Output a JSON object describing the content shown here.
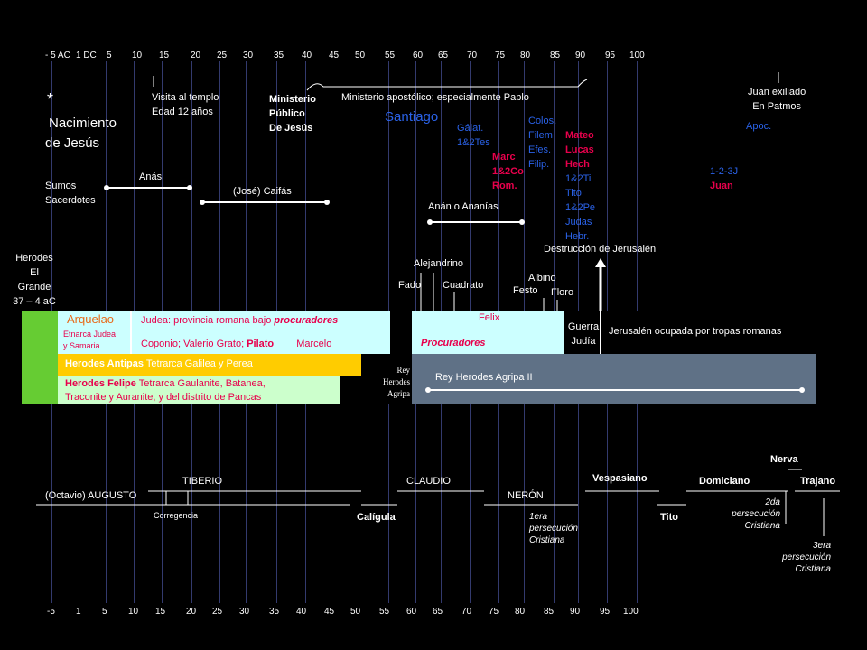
{
  "axis": {
    "top_ticks": [
      "- 5 AC",
      "1 DC",
      "5",
      "10",
      "15",
      "20",
      "25",
      "30",
      "35",
      "40",
      "45",
      "50",
      "55",
      "60",
      "65",
      "70",
      "75",
      "80",
      "85",
      "90",
      "95",
      "100"
    ],
    "bottom_ticks": [
      "-5",
      "1",
      "5",
      "10",
      "15",
      "20",
      "25",
      "30",
      "35",
      "40",
      "45",
      "50",
      "55",
      "60",
      "65",
      "70",
      "75",
      "80",
      "85",
      "90",
      "95",
      "100"
    ]
  },
  "events": {
    "star": "*",
    "birth": [
      "Nacimiento",
      "de Jesús"
    ],
    "temple": [
      "Visita al templo",
      "Edad 12 años"
    ],
    "ministry": [
      "Ministerio",
      "Público",
      "De Jesús"
    ],
    "apostolic": "Ministerio apostólico; especialmente Pablo",
    "santiago": "Santiago",
    "patmos": [
      "Juan exiliado",
      "En Patmos"
    ],
    "destruction": "Destrucción de Jerusalén"
  },
  "writings": {
    "galat": [
      "Gálat.",
      "1&2Tes"
    ],
    "marc": [
      "Marc",
      "1&2Co",
      "Rom."
    ],
    "colos": [
      "Colos.",
      "Filem",
      "Efes.",
      "Filip."
    ],
    "mateo": [
      "Mateo",
      "Lucas",
      "Hech",
      "1&2Ti",
      "Tito",
      "1&2Pe",
      "Judas",
      "Hebr."
    ],
    "juan": [
      "1-2-3J",
      "Juan"
    ],
    "apoc": "Apoc."
  },
  "priests": {
    "label": [
      "Sumos",
      "Sacerdotes"
    ],
    "anas": "Anás",
    "caifas": "(José) Caifás",
    "anan": "Anán o Ananías"
  },
  "herod": {
    "label": [
      "Herodes",
      "El",
      "Grande",
      "37 – 4 aC"
    ]
  },
  "procurators_names": {
    "alejandrino": "Alejandrino",
    "fado": "Fado",
    "cuadrato": "Cuadrato",
    "albino": "Albino",
    "festo": "Festo",
    "floro": "Floro"
  },
  "blocks": {
    "arquelao": "Arquelao",
    "arquelao_sub": [
      "Etnarca Judea",
      "y Samaria"
    ],
    "judea": "Judea: provincia romana bajo ",
    "judea_em": "procuradores",
    "coponio": "Coponio; Valerio Grato; ",
    "pilato": "Pilato",
    "marcelo": "Marcelo",
    "felix": "Felix",
    "procuradores": "Procuradores",
    "guerra": [
      "Guerra",
      "Judía"
    ],
    "ocupada": "Jerusalén ocupada por tropas romanas",
    "antipas_b": "Herodes Antipas",
    "antipas": " Tetrarca Galilea y Perea",
    "felipe_b": "Herodes Felipe",
    "felipe": " Tetrarca Gaulanite, Batanea,",
    "felipe2": "Traconite y Auranite, y del distrito de Pancas",
    "agripa1": [
      "Rey",
      "Herodes",
      "Agripa"
    ],
    "agripa2": "Rey Herodes Agripa II"
  },
  "emperors": {
    "augusto": "(Octavio) AUGUSTO",
    "tiberio": "TIBERIO",
    "corregencia": "Corregencia",
    "caligula": "Calígula",
    "claudio": "CLAUDIO",
    "neron": "NERÓN",
    "vespasiano": "Vespasiano",
    "tito": "Tito",
    "domiciano": "Domiciano",
    "nerva": "Nerva",
    "trajano": "Trajano"
  },
  "persecutions": {
    "p1": [
      "1era",
      "persecución",
      "Cristiana"
    ],
    "p2": [
      "2da",
      "persecución",
      "Cristiana"
    ],
    "p3": [
      "3era",
      "persecución",
      "Cristiana"
    ]
  },
  "colors": {
    "background": "#000000",
    "gridline": "#333a6e",
    "blue_text": "#2a62e8",
    "red_text": "#e8004c",
    "green_block": "#66cc33",
    "light_cyan": "#ccffff",
    "gold": "#ffcc00",
    "light_green": "#ccffcc",
    "slate": "#5f7186"
  }
}
